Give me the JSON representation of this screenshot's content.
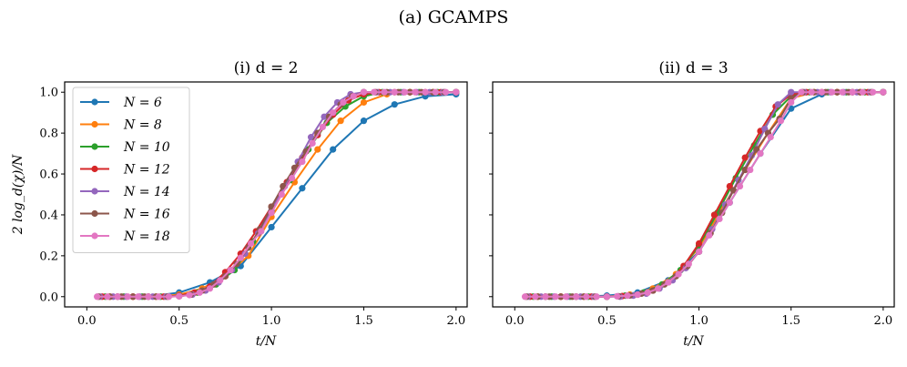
{
  "figure": {
    "suptitle": "(a) GCAMPS"
  },
  "chart_data": [
    {
      "type": "line",
      "title": "(i) d = 2",
      "xlabel": "t/N",
      "ylabel": "2 log_d(χ)/N",
      "xlim": [
        -0.12,
        2.06
      ],
      "ylim": [
        -0.05,
        1.05
      ],
      "xticks": [
        "0.0",
        "0.5",
        "1.0",
        "1.5",
        "2.0"
      ],
      "yticks": [
        "0.0",
        "0.2",
        "0.4",
        "0.6",
        "0.8",
        "1.0"
      ],
      "legend": "top-left",
      "series": [
        {
          "name": "N = 6",
          "color": "#1f77b4",
          "x": [
            0.1667,
            0.3333,
            0.5,
            0.6667,
            0.8333,
            1.0,
            1.1667,
            1.3333,
            1.5,
            1.6667,
            1.8333,
            2.0
          ],
          "y": [
            0,
            0,
            0.02,
            0.07,
            0.15,
            0.34,
            0.53,
            0.72,
            0.86,
            0.94,
            0.98,
            0.99
          ]
        },
        {
          "name": "N = 8",
          "color": "#ff7f0e",
          "x": [
            0.125,
            0.25,
            0.375,
            0.5,
            0.625,
            0.75,
            0.875,
            1.0,
            1.125,
            1.25,
            1.375,
            1.5,
            1.625,
            1.75,
            1.875,
            2.0
          ],
          "y": [
            0,
            0,
            0,
            0.01,
            0.04,
            0.1,
            0.2,
            0.39,
            0.56,
            0.72,
            0.86,
            0.95,
            0.99,
            1.0,
            1.0,
            1.0
          ]
        },
        {
          "name": "N = 10",
          "color": "#2ca02c",
          "x": [
            0.1,
            0.2,
            0.3,
            0.4,
            0.5,
            0.6,
            0.7,
            0.8,
            0.9,
            1.0,
            1.1,
            1.2,
            1.3,
            1.4,
            1.5,
            1.6,
            1.7,
            1.8,
            1.9,
            2.0
          ],
          "y": [
            0,
            0,
            0,
            0,
            0.005,
            0.02,
            0.06,
            0.13,
            0.27,
            0.42,
            0.57,
            0.72,
            0.85,
            0.93,
            0.98,
            1.0,
            1.0,
            1.0,
            1.0,
            1.0
          ]
        },
        {
          "name": "N = 12",
          "color": "#d62728",
          "x": [
            0.0833,
            0.1667,
            0.25,
            0.3333,
            0.4167,
            0.5,
            0.5833,
            0.6667,
            0.75,
            0.8333,
            0.9167,
            1.0,
            1.0833,
            1.1667,
            1.25,
            1.3333,
            1.4167,
            1.5,
            1.5833,
            1.6667,
            1.75,
            1.8333,
            1.9167,
            2.0
          ],
          "y": [
            0,
            0,
            0,
            0,
            0,
            0.005,
            0.02,
            0.05,
            0.12,
            0.21,
            0.32,
            0.44,
            0.56,
            0.68,
            0.79,
            0.89,
            0.96,
            0.99,
            1.0,
            1.0,
            1.0,
            1.0,
            1.0,
            1.0
          ]
        },
        {
          "name": "N = 14",
          "color": "#9467bd",
          "x": [
            0.0714,
            0.1429,
            0.2143,
            0.2857,
            0.3571,
            0.4286,
            0.5,
            0.5714,
            0.6429,
            0.7143,
            0.7857,
            0.8571,
            0.9286,
            1.0,
            1.0714,
            1.1429,
            1.2143,
            1.2857,
            1.3571,
            1.4286,
            1.5,
            1.5714,
            1.6429,
            1.7143,
            1.7857,
            1.8571,
            1.9286,
            2.0
          ],
          "y": [
            0,
            0,
            0,
            0,
            0,
            0,
            0.003,
            0.01,
            0.03,
            0.07,
            0.13,
            0.21,
            0.31,
            0.42,
            0.54,
            0.66,
            0.78,
            0.88,
            0.95,
            0.99,
            1.0,
            1.0,
            1.0,
            1.0,
            1.0,
            1.0,
            1.0,
            1.0
          ]
        },
        {
          "name": "N = 16",
          "color": "#8c564b",
          "x": [
            0.0625,
            0.125,
            0.1875,
            0.25,
            0.3125,
            0.375,
            0.4375,
            0.5,
            0.5625,
            0.625,
            0.6875,
            0.75,
            0.8125,
            0.875,
            0.9375,
            1.0,
            1.0625,
            1.125,
            1.1875,
            1.25,
            1.3125,
            1.375,
            1.4375,
            1.5,
            1.5625,
            1.625,
            1.6875,
            1.75,
            1.8125,
            1.875,
            1.9375,
            2.0
          ],
          "y": [
            0,
            0,
            0,
            0,
            0,
            0,
            0,
            0.002,
            0.01,
            0.03,
            0.06,
            0.1,
            0.16,
            0.24,
            0.33,
            0.44,
            0.54,
            0.63,
            0.71,
            0.8,
            0.88,
            0.94,
            0.98,
            1.0,
            1.0,
            1.0,
            1.0,
            1.0,
            1.0,
            1.0,
            1.0,
            1.0
          ]
        },
        {
          "name": "N = 18",
          "color": "#e377c2",
          "x": [
            0.0556,
            0.1111,
            0.1667,
            0.2222,
            0.2778,
            0.3333,
            0.3889,
            0.4444,
            0.5,
            0.5556,
            0.6111,
            0.6667,
            0.7222,
            0.7778,
            0.8333,
            0.8889,
            0.9444,
            1.0,
            1.0556,
            1.1111,
            1.1667,
            1.2222,
            1.2778,
            1.3333,
            1.3889,
            1.4444,
            1.5,
            1.5556,
            1.6111,
            1.6667,
            1.7222,
            1.7778,
            1.8333,
            1.8889,
            1.9444,
            2.0
          ],
          "y": [
            0,
            0,
            0,
            0,
            0,
            0,
            0,
            0,
            0.002,
            0.008,
            0.02,
            0.04,
            0.08,
            0.13,
            0.19,
            0.26,
            0.32,
            0.41,
            0.5,
            0.58,
            0.66,
            0.75,
            0.83,
            0.9,
            0.95,
            0.98,
            1.0,
            1.0,
            1.0,
            1.0,
            1.0,
            1.0,
            1.0,
            1.0,
            1.0,
            1.0
          ]
        }
      ]
    },
    {
      "type": "line",
      "title": "(ii) d = 3",
      "xlabel": "t/N",
      "ylabel": "",
      "xlim": [
        -0.12,
        2.06
      ],
      "ylim": [
        -0.05,
        1.05
      ],
      "xticks": [
        "0.0",
        "0.5",
        "1.0",
        "1.5",
        "2.0"
      ],
      "yticks": [
        "0.0",
        "0.2",
        "0.4",
        "0.6",
        "0.8",
        "1.0"
      ],
      "legend": "none",
      "series": [
        {
          "name": "N = 6",
          "color": "#1f77b4",
          "x": [
            0.1667,
            0.3333,
            0.5,
            0.6667,
            0.8333,
            1.0,
            1.1667,
            1.3333,
            1.5,
            1.6667,
            1.8333,
            2.0
          ],
          "y": [
            0,
            0,
            0.005,
            0.02,
            0.08,
            0.22,
            0.46,
            0.7,
            0.92,
            0.99,
            1.0,
            1.0
          ]
        },
        {
          "name": "N = 8",
          "color": "#ff7f0e",
          "x": [
            0.125,
            0.25,
            0.375,
            0.5,
            0.625,
            0.75,
            0.875,
            1.0,
            1.125,
            1.25,
            1.375,
            1.5,
            1.625,
            1.75,
            1.875,
            2.0
          ],
          "y": [
            0,
            0,
            0,
            0,
            0.01,
            0.04,
            0.11,
            0.24,
            0.43,
            0.62,
            0.8,
            0.97,
            1.0,
            1.0,
            1.0,
            1.0
          ]
        },
        {
          "name": "N = 10",
          "color": "#2ca02c",
          "x": [
            0.1,
            0.2,
            0.3,
            0.4,
            0.5,
            0.6,
            0.7,
            0.8,
            0.9,
            1.0,
            1.1,
            1.2,
            1.3,
            1.4,
            1.5,
            1.6,
            1.7,
            1.8,
            1.9,
            2.0
          ],
          "y": [
            0,
            0,
            0,
            0,
            0,
            0.005,
            0.02,
            0.06,
            0.13,
            0.25,
            0.41,
            0.58,
            0.74,
            0.89,
            0.98,
            1.0,
            1.0,
            1.0,
            1.0,
            1.0
          ]
        },
        {
          "name": "N = 12",
          "color": "#d62728",
          "x": [
            0.0833,
            0.1667,
            0.25,
            0.3333,
            0.4167,
            0.5,
            0.5833,
            0.6667,
            0.75,
            0.8333,
            0.9167,
            1.0,
            1.0833,
            1.1667,
            1.25,
            1.3333,
            1.4167,
            1.5,
            1.5833,
            1.6667,
            1.75,
            1.8333,
            1.9167,
            2.0
          ],
          "y": [
            0,
            0,
            0,
            0,
            0,
            0,
            0.003,
            0.01,
            0.03,
            0.07,
            0.15,
            0.26,
            0.4,
            0.54,
            0.68,
            0.81,
            0.93,
            0.99,
            1.0,
            1.0,
            1.0,
            1.0,
            1.0,
            1.0
          ]
        },
        {
          "name": "N = 14",
          "color": "#9467bd",
          "x": [
            0.0714,
            0.1429,
            0.2143,
            0.2857,
            0.3571,
            0.4286,
            0.5,
            0.5714,
            0.6429,
            0.7143,
            0.7857,
            0.8571,
            0.9286,
            1.0,
            1.0714,
            1.1429,
            1.2143,
            1.2857,
            1.3571,
            1.4286,
            1.5,
            1.5714,
            1.6429,
            1.7143,
            1.7857,
            1.8571,
            1.9286,
            2.0
          ],
          "y": [
            0,
            0,
            0,
            0,
            0,
            0,
            0,
            0,
            0.005,
            0.015,
            0.04,
            0.08,
            0.14,
            0.22,
            0.33,
            0.45,
            0.57,
            0.69,
            0.82,
            0.94,
            1.0,
            1.0,
            1.0,
            1.0,
            1.0,
            1.0,
            1.0,
            1.0
          ]
        },
        {
          "name": "N = 16",
          "color": "#8c564b",
          "x": [
            0.0625,
            0.125,
            0.1875,
            0.25,
            0.3125,
            0.375,
            0.4375,
            0.5,
            0.5625,
            0.625,
            0.6875,
            0.75,
            0.8125,
            0.875,
            0.9375,
            1.0,
            1.0625,
            1.125,
            1.1875,
            1.25,
            1.3125,
            1.375,
            1.4375,
            1.5,
            1.5625,
            1.625,
            1.6875,
            1.75,
            1.8125,
            1.875,
            1.9375,
            2.0
          ],
          "y": [
            0,
            0,
            0,
            0,
            0,
            0,
            0,
            0,
            0.002,
            0.006,
            0.015,
            0.03,
            0.06,
            0.1,
            0.15,
            0.22,
            0.31,
            0.41,
            0.52,
            0.62,
            0.72,
            0.8,
            0.87,
            0.97,
            1.0,
            1.0,
            1.0,
            1.0,
            1.0,
            1.0,
            1.0,
            1.0
          ]
        },
        {
          "name": "N = 18",
          "color": "#e377c2",
          "x": [
            0.0556,
            0.1111,
            0.1667,
            0.2222,
            0.2778,
            0.3333,
            0.3889,
            0.4444,
            0.5,
            0.5556,
            0.6111,
            0.6667,
            0.7222,
            0.7778,
            0.8333,
            0.8889,
            0.9444,
            1.0,
            1.0556,
            1.1111,
            1.1667,
            1.2222,
            1.2778,
            1.3333,
            1.3889,
            1.4444,
            1.5,
            1.5556,
            1.6111,
            1.6667,
            1.7222,
            1.7778,
            1.8333,
            1.8889,
            1.9444,
            2.0
          ],
          "y": [
            0,
            0,
            0,
            0,
            0,
            0,
            0,
            0,
            0,
            0.002,
            0.005,
            0.01,
            0.02,
            0.04,
            0.07,
            0.11,
            0.16,
            0.22,
            0.3,
            0.38,
            0.46,
            0.54,
            0.62,
            0.7,
            0.78,
            0.86,
            0.95,
            1.0,
            1.0,
            1.0,
            1.0,
            1.0,
            1.0,
            1.0,
            1.0,
            1.0
          ]
        }
      ]
    }
  ]
}
